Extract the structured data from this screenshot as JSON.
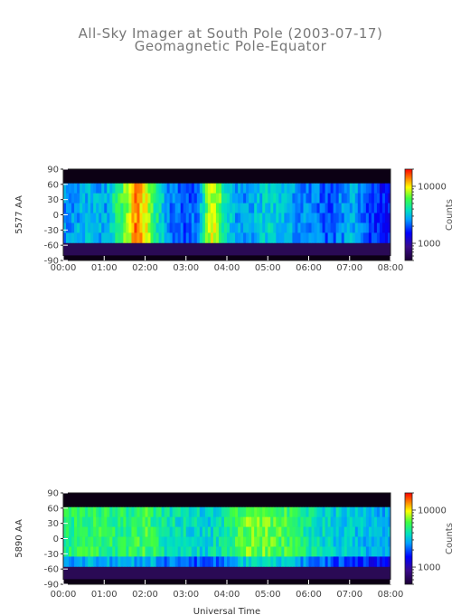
{
  "figure": {
    "title_line1": "All-Sky Imager at South Pole (2003-07-17)",
    "title_line2": "Geomagnetic Pole-Equator",
    "xlabel": "Universal Time"
  },
  "chart_data": [
    {
      "type": "heatmap",
      "ylabel": "5577 AA",
      "x_ticks": [
        "00:00",
        "01:00",
        "02:00",
        "03:00",
        "04:00",
        "05:00",
        "06:00",
        "07:00",
        "08:00"
      ],
      "y_ticks": [
        "90",
        "60",
        "30",
        "0",
        "-30",
        "-60",
        "-90"
      ],
      "y_tick_values": [
        90,
        60,
        30,
        0,
        -30,
        -60,
        -90
      ],
      "xlim_hours": [
        0,
        8
      ],
      "ylim": [
        -90,
        90
      ],
      "valid_lat_range": [
        -55,
        62
      ],
      "colorbar": {
        "label": "Counts",
        "scale": "log",
        "ticks": [
          "10000",
          "1000"
        ],
        "tick_values": [
          10000,
          1000
        ],
        "range": [
          500,
          20000
        ]
      },
      "background_level": 1500,
      "intensity_profile_hours": [
        0,
        0.5,
        1.0,
        1.3,
        1.6,
        1.75,
        1.85,
        2.0,
        2.2,
        2.5,
        3.0,
        3.3,
        3.6,
        3.75,
        3.9,
        4.3,
        5.0,
        5.5,
        6.0,
        6.5,
        7.0,
        7.5,
        8.0
      ],
      "intensity_profile_counts": [
        2500,
        3000,
        2800,
        5000,
        8000,
        15000,
        12000,
        9000,
        5000,
        2500,
        2000,
        2500,
        9000,
        8000,
        4000,
        2500,
        3500,
        2800,
        2500,
        2000,
        3000,
        1800,
        1500
      ]
    },
    {
      "type": "heatmap",
      "ylabel": "5890 AA",
      "x_ticks": [
        "00:00",
        "01:00",
        "02:00",
        "03:00",
        "04:00",
        "05:00",
        "06:00",
        "07:00",
        "08:00"
      ],
      "y_ticks": [
        "90",
        "60",
        "30",
        "0",
        "-30",
        "-60",
        "-90"
      ],
      "y_tick_values": [
        90,
        60,
        30,
        0,
        -30,
        -60,
        -90
      ],
      "xlim_hours": [
        0,
        8
      ],
      "ylim": [
        -90,
        90
      ],
      "valid_lat_range": [
        -55,
        62
      ],
      "colorbar": {
        "label": "Counts",
        "scale": "log",
        "ticks": [
          "10000",
          "1000"
        ],
        "tick_values": [
          10000,
          1000
        ],
        "range": [
          500,
          20000
        ]
      },
      "background_level": 1200,
      "intensity_profile_hours": [
        0,
        0.5,
        1.0,
        1.5,
        2.0,
        2.5,
        3.0,
        3.5,
        4.0,
        4.5,
        5.0,
        5.5,
        6.0,
        6.5,
        7.0,
        7.5,
        8.0
      ],
      "intensity_profile_counts": [
        5000,
        5500,
        5200,
        5000,
        5800,
        4200,
        3800,
        3600,
        4500,
        7000,
        6500,
        5500,
        4200,
        3600,
        3300,
        3000,
        2800
      ]
    }
  ]
}
